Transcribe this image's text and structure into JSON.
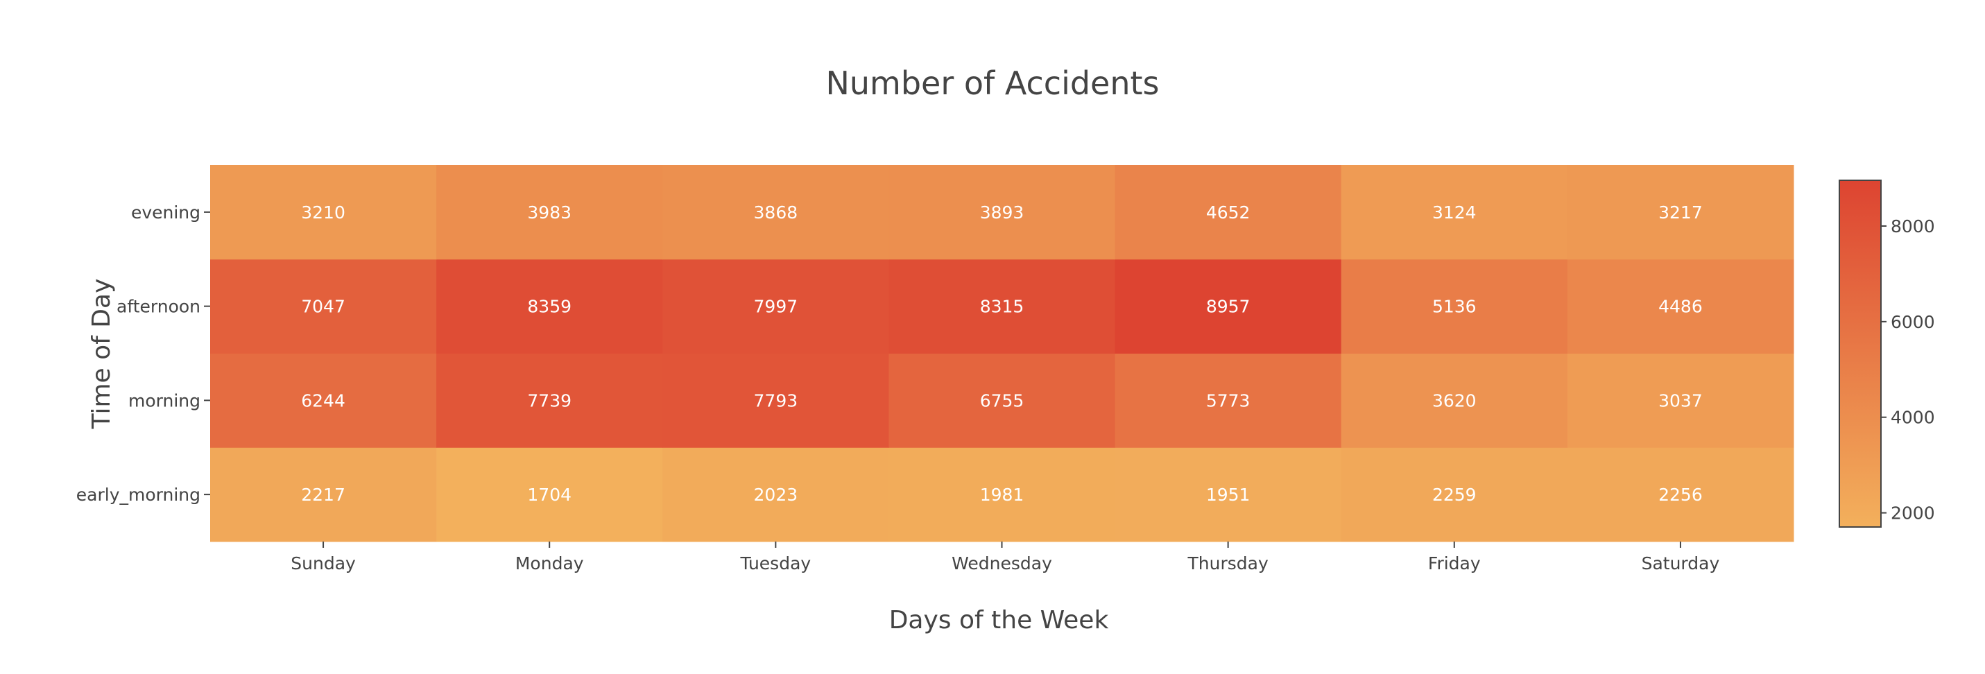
{
  "chart_data": {
    "type": "heatmap",
    "title": "Number of Accidents",
    "xlabel": "Days of the Week",
    "ylabel": "Time of Day",
    "x": [
      "Sunday",
      "Monday",
      "Tuesday",
      "Wednesday",
      "Thursday",
      "Friday",
      "Saturday"
    ],
    "y": [
      "early_morning",
      "morning",
      "afternoon",
      "evening"
    ],
    "z": [
      [
        2217,
        1704,
        2023,
        1981,
        1951,
        2259,
        2256
      ],
      [
        6244,
        7739,
        7793,
        6755,
        5773,
        3620,
        3037
      ],
      [
        7047,
        8359,
        7997,
        8315,
        8957,
        5136,
        4486
      ],
      [
        3210,
        3983,
        3868,
        3893,
        4652,
        3124,
        3217
      ]
    ],
    "show_values": true,
    "colorscale": [
      "#f3b05c",
      "#dd4431"
    ],
    "zrange": [
      1704,
      8957
    ],
    "colorbar": {
      "ticks": [
        2000,
        4000,
        6000,
        8000
      ]
    }
  }
}
